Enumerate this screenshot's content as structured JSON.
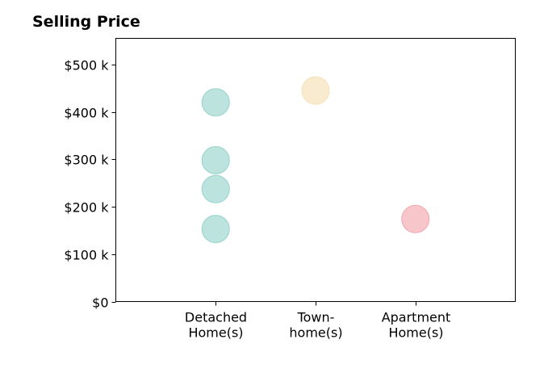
{
  "chart_data": {
    "type": "scatter",
    "title": "Selling Price",
    "xlabel": "",
    "ylabel": "",
    "categories": [
      [
        "Detached",
        "Home(s)"
      ],
      [
        "Town-",
        "home(s)"
      ],
      [
        "Apartment",
        "Home(s)"
      ]
    ],
    "points": [
      {
        "category": 0,
        "value": 420000
      },
      {
        "category": 0,
        "value": 298000
      },
      {
        "category": 0,
        "value": 237000
      },
      {
        "category": 0,
        "value": 153000
      },
      {
        "category": 1,
        "value": 445000
      },
      {
        "category": 2,
        "value": 174000
      }
    ],
    "yticks": [
      {
        "value": 0,
        "label": "$0"
      },
      {
        "value": 100000,
        "label": "$100 k"
      },
      {
        "value": 200000,
        "label": "$200 k"
      },
      {
        "value": 300000,
        "label": "$300 k"
      },
      {
        "value": 400000,
        "label": "$400 k"
      },
      {
        "value": 500000,
        "label": "$500 k"
      }
    ],
    "ylim": [
      0,
      555000
    ],
    "xlim": [
      -1,
      3
    ],
    "grid": false,
    "colors": [
      "#8fd0c8",
      "#f5deb0",
      "#f2a0a6"
    ],
    "marker_opacity": 0.6
  }
}
